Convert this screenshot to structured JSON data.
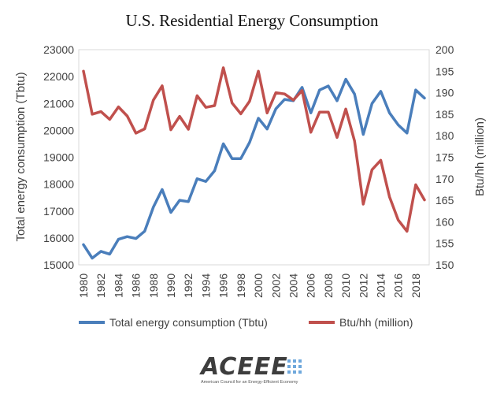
{
  "chart_data": {
    "type": "line",
    "title": "U.S. Residential Energy Consumption",
    "x": [
      1980,
      1981,
      1982,
      1983,
      1984,
      1985,
      1986,
      1987,
      1988,
      1989,
      1990,
      1991,
      1992,
      1993,
      1994,
      1995,
      1996,
      1997,
      1998,
      1999,
      2000,
      2001,
      2002,
      2003,
      2004,
      2005,
      2006,
      2007,
      2008,
      2009,
      2010,
      2011,
      2012,
      2013,
      2014,
      2015,
      2016,
      2017,
      2018,
      2019
    ],
    "x_tick_labels": [
      "1980",
      "1982",
      "1984",
      "1986",
      "1988",
      "1990",
      "1992",
      "1994",
      "1996",
      "1998",
      "2000",
      "2002",
      "2004",
      "2006",
      "2008",
      "2010",
      "2012",
      "2014",
      "2016",
      "2018"
    ],
    "y_left": {
      "label": "Total energy consumption (Tbtu)",
      "lim": [
        15000,
        23000
      ],
      "ticks": [
        "15000",
        "16000",
        "17000",
        "18000",
        "19000",
        "20000",
        "21000",
        "22000",
        "23000"
      ]
    },
    "y_right": {
      "label": "Btu/hh (million)",
      "lim": [
        150,
        200
      ],
      "ticks": [
        "150",
        "155",
        "160",
        "165",
        "170",
        "175",
        "180",
        "185",
        "190",
        "195",
        "200"
      ]
    },
    "series": [
      {
        "name": "Total energy consumption (Tbtu)",
        "axis": "left",
        "color": "#4a7ebb",
        "values": [
          15750,
          15250,
          15500,
          15400,
          15950,
          16050,
          15980,
          16250,
          17150,
          17800,
          16950,
          17400,
          17350,
          18200,
          18100,
          18500,
          19500,
          18950,
          18950,
          19550,
          20450,
          20050,
          20800,
          21150,
          21100,
          21600,
          20650,
          21500,
          21650,
          21100,
          21900,
          21350,
          19850,
          21000,
          21450,
          20650,
          20200,
          19900,
          21500,
          21200
        ]
      },
      {
        "name": "Btu/hh (million)",
        "axis": "right",
        "color": "#c0504d",
        "values": [
          195,
          185,
          185.6,
          183.8,
          186.7,
          184.6,
          180.6,
          181.6,
          188.3,
          191.6,
          181.4,
          184.5,
          181.5,
          189.3,
          186.6,
          187,
          195.8,
          187.6,
          185.1,
          188,
          195,
          185.3,
          190,
          189.7,
          188.3,
          190.5,
          180.8,
          185.5,
          185.5,
          179.6,
          186.2,
          178.8,
          164.1,
          172.1,
          174.3,
          165.8,
          160.4,
          157.8,
          168.6,
          165.1
        ]
      }
    ],
    "legend": "bottom",
    "grid": false
  },
  "logo": {
    "text": "ACEEE",
    "tagline": "American Council for an Energy-Efficient Economy"
  }
}
